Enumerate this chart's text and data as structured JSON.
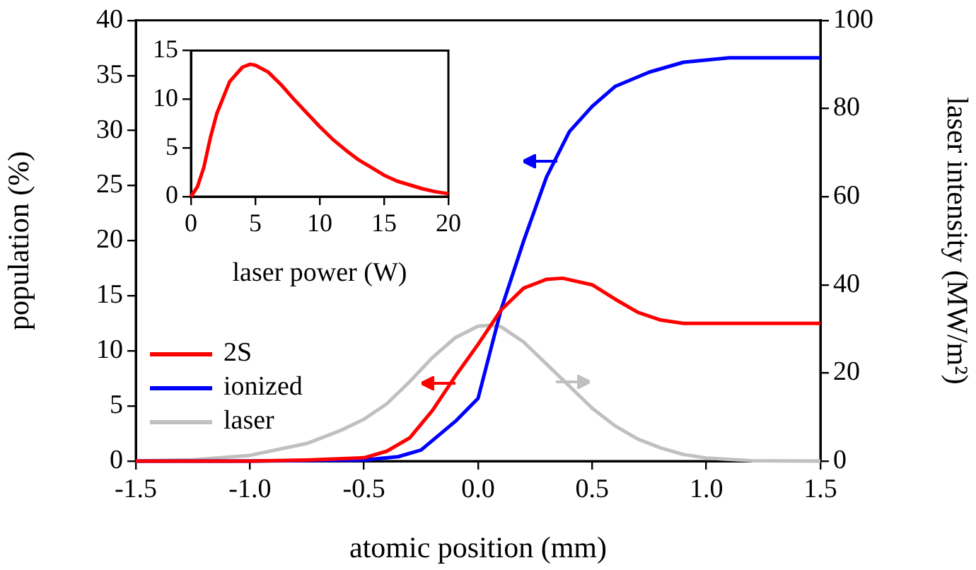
{
  "chart_data": [
    {
      "type": "line",
      "xlabel": "atomic position (mm)",
      "ylabel": "population (%)",
      "y2label": "laser intensity (MW/m²)",
      "xlim": [
        -1.5,
        1.5
      ],
      "xticks": [
        -1.5,
        {
          "value": -1,
          "label": "-1.0"
        },
        -0.5,
        {
          "value": 0,
          "label": "0.0"
        },
        0.5,
        {
          "value": 1,
          "label": "1.0"
        },
        1.5
      ],
      "ylim": [
        0,
        40
      ],
      "yticks": [
        0,
        5,
        10,
        15,
        20,
        25,
        30,
        35,
        40
      ],
      "y2lim": [
        0,
        100
      ],
      "y2ticks": [
        0,
        20,
        40,
        60,
        80,
        100
      ],
      "grid": false,
      "legend": "bottom left",
      "marker": "none",
      "line_style": "solid",
      "series": [
        {
          "name": "2S",
          "color": "#ff0000",
          "x": [
            -1.5,
            -1,
            -0.75,
            -0.5,
            -0.4,
            -0.3,
            -0.2,
            -0.1,
            0,
            0.1,
            0.2,
            0.3,
            0.37,
            0.5,
            0.6,
            0.7,
            0.8,
            0.9,
            1,
            1.2,
            1.5
          ],
          "values": [
            0,
            0,
            0.1,
            0.3,
            0.9,
            2.1,
            4.6,
            7.7,
            10.6,
            13.7,
            15.7,
            16.5,
            16.6,
            16,
            14.7,
            13.5,
            12.8,
            12.5,
            12.5,
            12.5,
            12.5
          ]
        },
        {
          "name": "ionized",
          "color": "#0000ff",
          "x": [
            -1.5,
            -1,
            -0.5,
            -0.35,
            -0.25,
            -0.1,
            0,
            0.1,
            0.2,
            0.3,
            0.4,
            0.5,
            0.6,
            0.75,
            0.9,
            1.1,
            1.3,
            1.5
          ],
          "values": [
            0,
            0,
            0.1,
            0.4,
            1,
            3.6,
            5.7,
            13.7,
            20,
            25.8,
            29.9,
            32.2,
            34,
            35.3,
            36.2,
            36.6,
            36.6,
            36.6
          ]
        },
        {
          "name": "laser",
          "color": "#c0c0c0",
          "axis": "y2",
          "x": [
            -1.5,
            -1.25,
            -1,
            -0.75,
            -0.6,
            -0.5,
            -0.4,
            -0.3,
            -0.2,
            -0.1,
            0,
            0.05,
            0.1,
            0.2,
            0.3,
            0.4,
            0.5,
            0.6,
            0.7,
            0.8,
            0.9,
            1,
            1.2,
            1.5
          ],
          "values": [
            0,
            0.3,
            1.3,
            4,
            7,
            9.5,
            13,
            18,
            23.5,
            28,
            30.6,
            30.8,
            30.5,
            27,
            22,
            17,
            12,
            8,
            5,
            3,
            1.5,
            0.7,
            0.1,
            0
          ]
        }
      ]
    },
    {
      "type": "line",
      "xlabel": "laser power (W)",
      "xlim": [
        0,
        20
      ],
      "xticks": [
        0,
        5,
        10,
        15,
        20
      ],
      "ylim": [
        0,
        15
      ],
      "yticks": [
        0,
        5,
        10,
        15
      ],
      "grid": false,
      "legend": false,
      "marker": "none",
      "line_style": "solid",
      "series": [
        {
          "color": "#ff0000",
          "x": [
            0,
            0.5,
            1,
            1.5,
            2,
            3,
            4,
            4.6,
            5,
            6,
            7,
            8,
            9,
            10,
            11,
            12,
            13,
            14,
            15,
            16,
            17,
            18,
            19,
            20
          ],
          "values": [
            0,
            1,
            3,
            6,
            8.5,
            11.8,
            13.3,
            13.6,
            13.5,
            12.8,
            11.5,
            10,
            8.6,
            7.2,
            5.9,
            4.8,
            3.8,
            3,
            2.2,
            1.6,
            1.2,
            0.8,
            0.5,
            0.3
          ]
        }
      ]
    }
  ]
}
